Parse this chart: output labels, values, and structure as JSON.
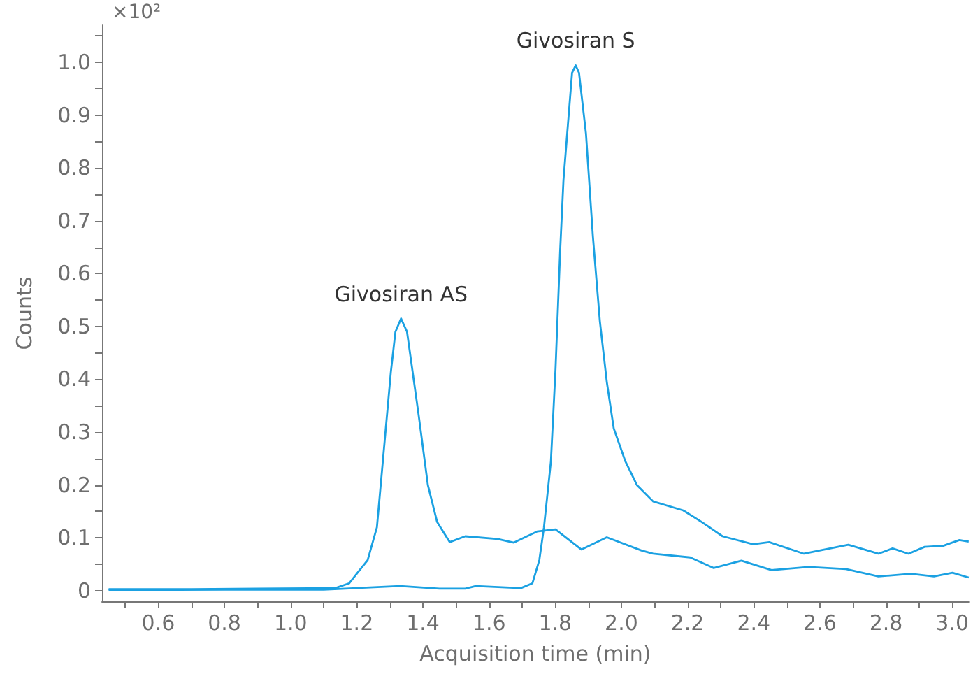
{
  "chart_data": {
    "type": "line",
    "xlabel": "Acquisition time (min)",
    "ylabel": "Counts",
    "annotations": [
      "×10²"
    ],
    "xlim": [
      0.43,
      3.05
    ],
    "ylim": [
      -0.02,
      1.07
    ],
    "xticks": [
      {
        "value": 0.5,
        "label": null
      },
      "0.6",
      {
        "value": 0.7,
        "label": null
      },
      "0.8",
      {
        "value": 0.9,
        "label": null
      },
      {
        "value": 1,
        "label": "1.0"
      },
      {
        "value": 1.1,
        "label": null
      },
      1.2,
      {
        "value": 1.3,
        "label": null
      },
      1.4,
      {
        "value": 1.5,
        "label": null
      },
      1.6,
      {
        "value": 1.7,
        "label": null
      },
      1.8,
      {
        "value": 1.9,
        "label": null
      },
      {
        "value": 2,
        "label": "2.0"
      },
      {
        "value": 2.1,
        "label": null
      },
      2.2,
      {
        "value": 2.3,
        "label": null
      },
      2.4,
      {
        "value": 2.5,
        "label": null
      },
      2.6,
      {
        "value": 2.7,
        "label": null
      },
      2.8,
      {
        "value": 2.9,
        "label": null
      },
      {
        "value": 3,
        "label": "3.0"
      }
    ],
    "yticks": [
      0,
      {
        "value": 0.05,
        "label": null
      },
      0.1,
      {
        "value": 0.15,
        "label": null
      },
      0.2,
      {
        "value": 0.25,
        "label": null
      },
      0.3,
      {
        "value": 0.35,
        "label": null
      },
      0.4,
      {
        "value": 0.45,
        "label": null
      },
      0.5,
      {
        "value": 0.55,
        "label": null
      },
      0.6,
      {
        "value": 0.65,
        "label": null
      },
      0.7,
      {
        "value": 0.75,
        "label": null
      },
      0.8,
      {
        "value": 0.85,
        "label": null
      },
      0.9,
      {
        "value": 0.95,
        "label": null
      },
      {
        "value": 1,
        "label": "1.0"
      },
      {
        "value": 1.05,
        "label": null
      }
    ],
    "grid": false,
    "legend": false,
    "marker": "none",
    "line_style": "solid",
    "series": [
      {
        "name": "Givosiran AS",
        "color": "#1ba1e2",
        "x": [
          0.45,
          0.7,
          0.9,
          1.135,
          1.177,
          1.233,
          1.261,
          1.303,
          1.317,
          1.334,
          1.352,
          1.387,
          1.415,
          1.443,
          1.481,
          1.528,
          1.626,
          1.675,
          1.745,
          1.801,
          1.879,
          1.956,
          2.061,
          2.096,
          2.208,
          2.279,
          2.363,
          2.454,
          2.566,
          2.679,
          2.777,
          2.875,
          2.945,
          3.001,
          3.05
        ],
        "values": [
          0.003,
          0.003,
          0.004,
          0.005,
          0.014,
          0.058,
          0.12,
          0.413,
          0.49,
          0.515,
          0.49,
          0.333,
          0.2,
          0.13,
          0.092,
          0.103,
          0.098,
          0.091,
          0.112,
          0.116,
          0.078,
          0.101,
          0.076,
          0.07,
          0.063,
          0.043,
          0.057,
          0.039,
          0.045,
          0.041,
          0.027,
          0.032,
          0.027,
          0.034,
          0.025
        ]
      },
      {
        "name": "Givosiran S",
        "color": "#1ba1e2",
        "x": [
          0.45,
          0.8,
          1.1,
          1.331,
          1.45,
          1.528,
          1.56,
          1.696,
          1.731,
          1.752,
          1.766,
          1.787,
          1.801,
          1.815,
          1.825,
          1.851,
          1.862,
          1.872,
          1.893,
          1.914,
          1.935,
          1.956,
          1.977,
          2.012,
          2.047,
          2.096,
          2.187,
          2.243,
          2.306,
          2.398,
          2.447,
          2.552,
          2.686,
          2.777,
          2.82,
          2.868,
          2.917,
          2.973,
          3.022,
          3.05
        ],
        "values": [
          0.001,
          0.002,
          0.002,
          0.009,
          0.004,
          0.004,
          0.009,
          0.005,
          0.014,
          0.058,
          0.12,
          0.245,
          0.42,
          0.644,
          0.777,
          0.98,
          0.994,
          0.98,
          0.865,
          0.67,
          0.51,
          0.395,
          0.307,
          0.245,
          0.2,
          0.169,
          0.152,
          0.13,
          0.103,
          0.088,
          0.092,
          0.07,
          0.087,
          0.07,
          0.08,
          0.07,
          0.083,
          0.085,
          0.096,
          0.093
        ]
      }
    ]
  }
}
